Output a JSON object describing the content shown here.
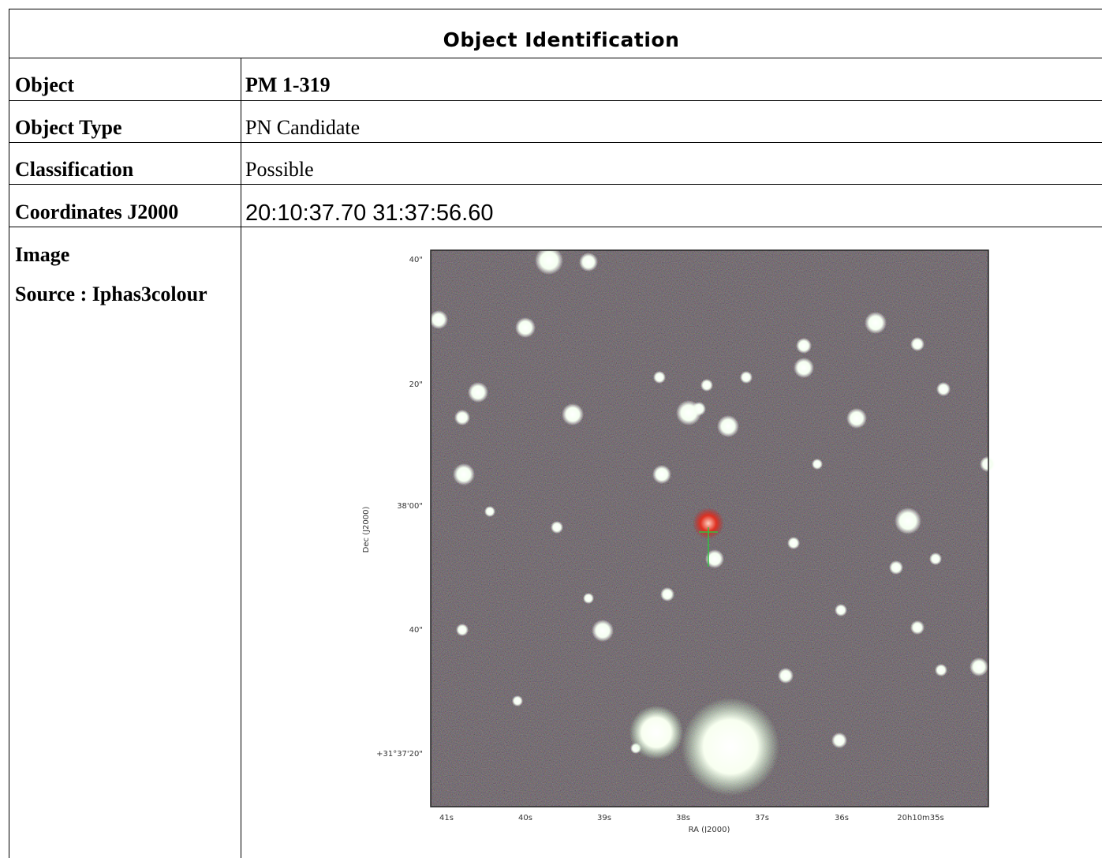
{
  "header": {
    "title": "Object Identification"
  },
  "table": {
    "rows": [
      [
        "Object",
        "PM 1-319"
      ],
      [
        "Object Type",
        "PN Candidate"
      ],
      [
        "Classification",
        "Possible"
      ],
      [
        "Coordinates J2000",
        "20:10:37.70 31:37:56.60"
      ]
    ],
    "image_row": {
      "label": "Image",
      "source": "Source : Iphas3colour"
    }
  },
  "image": {
    "ylabel": "Dec (J2000)",
    "xlabel": "RA (J2000)",
    "yticks": [
      "40\"",
      "20\"",
      "38'00\"",
      "40\"",
      "+31°37'20\""
    ],
    "xticks": [
      "41s",
      "40s",
      "39s",
      "38s",
      "37s",
      "36s",
      "20h10m35s"
    ]
  }
}
